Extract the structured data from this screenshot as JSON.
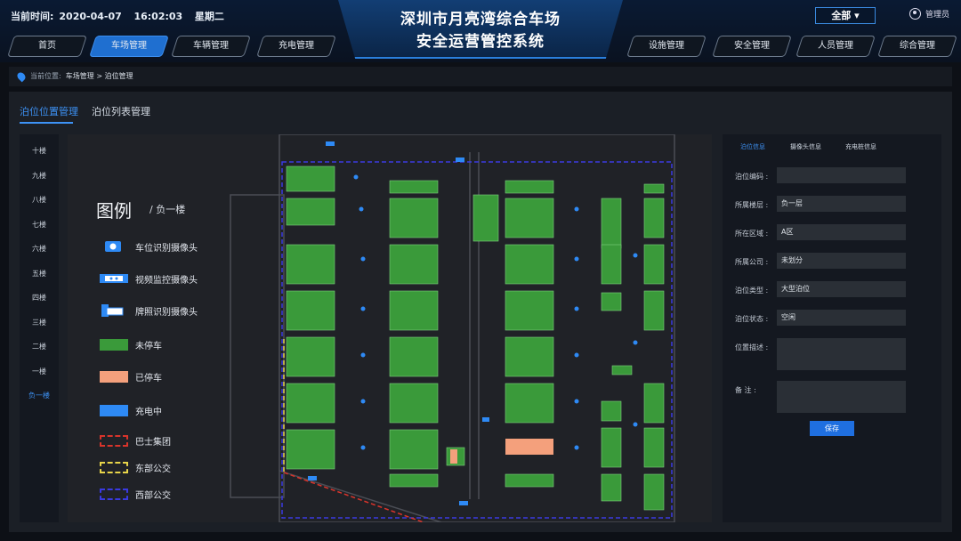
{
  "header": {
    "time_label": "当前时间:",
    "date": "2020-04-07",
    "time": "16:02:03",
    "weekday": "星期二",
    "title_line1": "深圳市月亮湾综合车场",
    "title_line2": "安全运营管控系统",
    "scope_select": "全部",
    "user_label": "管理员"
  },
  "nav": {
    "left": [
      "首页",
      "车场管理",
      "车辆管理",
      "充电管理"
    ],
    "right": [
      "设施管理",
      "安全管理",
      "人员管理",
      "综合管理"
    ],
    "active": "车场管理"
  },
  "breadcrumb": {
    "prefix": "当前位置:",
    "path": "车场管理 > 泊位管理"
  },
  "subtabs": [
    "泊位位置管理",
    "泊位列表管理"
  ],
  "floors": [
    "十楼",
    "九楼",
    "八楼",
    "七楼",
    "六楼",
    "五楼",
    "四楼",
    "三楼",
    "二楼",
    "一楼",
    "负一楼"
  ],
  "active_floor": "负一楼",
  "legend": {
    "title": "图例",
    "floor": "负一楼",
    "items": [
      {
        "label": "车位识别摄像头",
        "icon": "parking-camera-icon"
      },
      {
        "label": "视频监控摄像头",
        "icon": "cctv-camera-icon"
      },
      {
        "label": "牌照识别摄像头",
        "icon": "plate-camera-icon"
      },
      {
        "label": "未停车",
        "color": "#3a9a3a"
      },
      {
        "label": "已停车",
        "color": "#f4a07c"
      },
      {
        "label": "充电中",
        "color": "#2e8af5"
      },
      {
        "label": "巴士集团",
        "color": "#d9342b"
      },
      {
        "label": "东部公交",
        "color": "#e8d54a"
      },
      {
        "label": "西部公交",
        "color": "#3a3ae0"
      }
    ]
  },
  "right_panel": {
    "tabs": [
      "泊位信息",
      "摄像头信息",
      "充电桩信息"
    ],
    "fields": [
      {
        "label": "泊位编码 :",
        "value": ""
      },
      {
        "label": "所属楼层 :",
        "value": "负一层"
      },
      {
        "label": "所在区域 :",
        "value": "A区"
      },
      {
        "label": "所属公司 :",
        "value": "未划分"
      },
      {
        "label": "泊位类型 :",
        "value": "大型泊位"
      },
      {
        "label": "泊位状态 :",
        "value": "空闲"
      },
      {
        "label": "位置描述 :",
        "value": ""
      },
      {
        "label": "备      注 :",
        "value": ""
      }
    ],
    "save_label": "保存"
  },
  "colors": {
    "accent": "#2e8af5",
    "free": "#3a9a3a",
    "occupied": "#f4a07c"
  }
}
